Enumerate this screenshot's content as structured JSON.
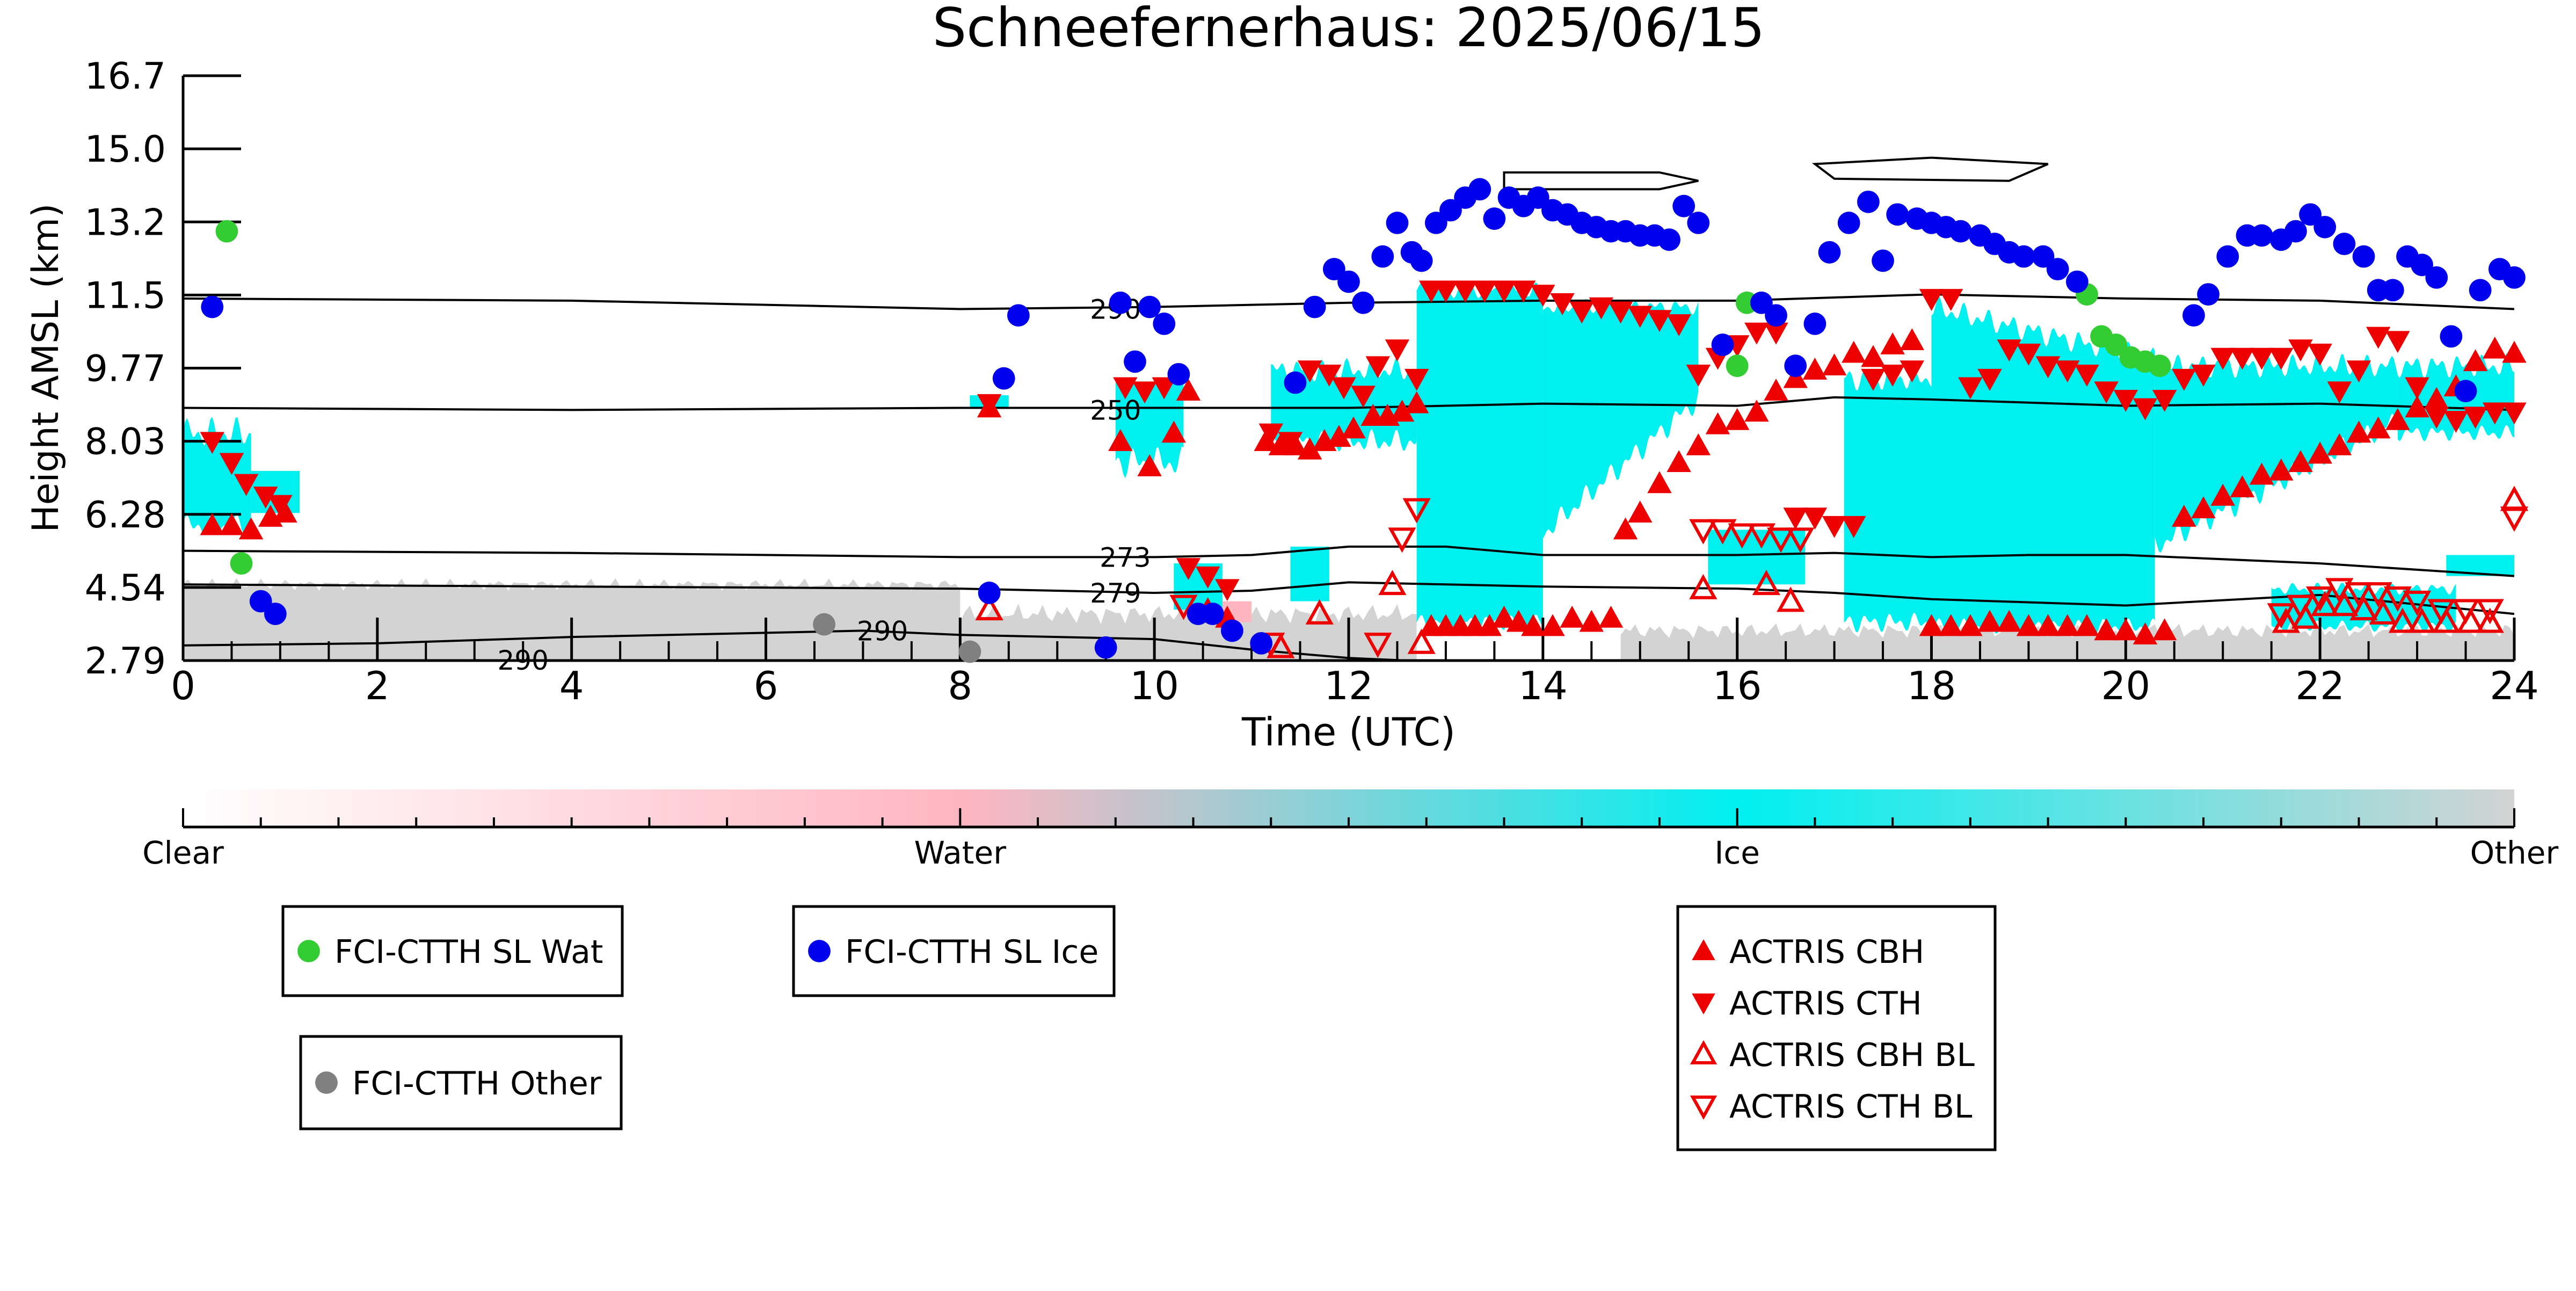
{
  "chart_data": {
    "type": "scatter",
    "title": "Schneefernerhaus: 2025/06/15",
    "xlabel": "Time (UTC)",
    "ylabel": "Height AMSL (km)",
    "xlim": [
      0,
      24
    ],
    "ylim": [
      2.79,
      16.7
    ],
    "x_ticks": [
      "0",
      "2",
      "4",
      "6",
      "8",
      "10",
      "12",
      "14",
      "16",
      "18",
      "20",
      "22",
      "24"
    ],
    "y_ticks": [
      "2.79",
      "4.54",
      "6.28",
      "8.03",
      "9.77",
      "11.5",
      "13.2",
      "15.0",
      "16.7"
    ],
    "grid": false,
    "colorbar": {
      "labels": [
        "Clear",
        "Water",
        "Ice",
        "Other"
      ],
      "colors": [
        "#ffffff",
        "#ffb6c1",
        "#00f0f0",
        "#d3d3d3"
      ]
    },
    "isotherms": [
      {
        "label": "290",
        "points": [
          [
            0,
            11.4
          ],
          [
            4,
            11.35
          ],
          [
            8,
            11.15
          ],
          [
            10,
            11.2
          ],
          [
            12,
            11.3
          ],
          [
            14,
            11.35
          ],
          [
            16,
            11.35
          ],
          [
            18,
            11.5
          ],
          [
            20,
            11.4
          ],
          [
            22,
            11.35
          ],
          [
            24,
            11.15
          ]
        ]
      },
      {
        "label": "250",
        "points": [
          [
            0,
            8.8
          ],
          [
            4,
            8.75
          ],
          [
            8,
            8.8
          ],
          [
            10,
            8.8
          ],
          [
            12,
            8.8
          ],
          [
            14,
            8.9
          ],
          [
            16,
            8.85
          ],
          [
            17,
            9.05
          ],
          [
            18,
            9.0
          ],
          [
            20,
            8.85
          ],
          [
            22,
            8.9
          ],
          [
            24,
            8.75
          ]
        ]
      },
      {
        "label": "273",
        "points": [
          [
            0,
            5.4
          ],
          [
            4,
            5.35
          ],
          [
            8,
            5.25
          ],
          [
            10,
            5.25
          ],
          [
            11,
            5.3
          ],
          [
            12,
            5.5
          ],
          [
            13,
            5.5
          ],
          [
            14,
            5.3
          ],
          [
            16,
            5.3
          ],
          [
            17,
            5.35
          ],
          [
            18,
            5.25
          ],
          [
            19,
            5.3
          ],
          [
            20,
            5.3
          ],
          [
            22,
            5.1
          ],
          [
            24,
            4.8
          ]
        ]
      },
      {
        "label": "279",
        "points": [
          [
            0,
            4.6
          ],
          [
            4,
            4.55
          ],
          [
            8,
            4.5
          ],
          [
            10,
            4.4
          ],
          [
            11,
            4.45
          ],
          [
            12,
            4.65
          ],
          [
            13,
            4.6
          ],
          [
            14,
            4.55
          ],
          [
            16,
            4.5
          ],
          [
            17,
            4.4
          ],
          [
            18,
            4.25
          ],
          [
            20,
            4.1
          ],
          [
            22,
            4.35
          ],
          [
            24,
            3.9
          ]
        ]
      },
      {
        "label": "290",
        "points": [
          [
            0,
            3.15
          ],
          [
            2,
            3.2
          ],
          [
            4,
            3.35
          ],
          [
            6,
            3.45
          ],
          [
            7,
            3.5
          ],
          [
            8,
            3.4
          ],
          [
            9,
            3.35
          ],
          [
            10,
            3.3
          ],
          [
            11,
            3.05
          ],
          [
            12,
            2.85
          ],
          [
            13,
            2.75
          ]
        ]
      },
      {
        "label": "290",
        "points": [
          [
            3,
            2.8
          ],
          [
            4,
            2.75
          ]
        ]
      }
    ],
    "series": [
      {
        "name": "FCI-CTTH SL Wat",
        "color": "#33cc33",
        "marker": "circle",
        "x": [
          0.45,
          0.6,
          16.0,
          16.1,
          19.6,
          19.75,
          19.9,
          20.05,
          20.2,
          20.35
        ],
        "y": [
          13.0,
          5.1,
          9.8,
          11.3,
          11.5,
          10.5,
          10.3,
          10.0,
          9.9,
          9.8
        ]
      },
      {
        "name": "FCI-CTTH SL Ice",
        "color": "#0000ee",
        "marker": "circle",
        "x": [
          0.3,
          0.8,
          0.95,
          8.3,
          8.45,
          8.6,
          9.5,
          9.65,
          9.8,
          9.95,
          10.1,
          10.25,
          10.45,
          10.6,
          10.8,
          11.1,
          11.45,
          11.65,
          11.85,
          12.0,
          12.15,
          12.35,
          12.5,
          12.65,
          12.75,
          12.9,
          13.05,
          13.2,
          13.35,
          13.5,
          13.65,
          13.8,
          13.95,
          14.1,
          14.25,
          14.4,
          14.55,
          14.7,
          14.85,
          15.0,
          15.15,
          15.3,
          15.45,
          15.6,
          15.85,
          16.25,
          16.4,
          16.6,
          16.8,
          16.95,
          17.15,
          17.35,
          17.5,
          17.65,
          17.85,
          18.0,
          18.15,
          18.3,
          18.5,
          18.65,
          18.8,
          18.95,
          19.15,
          19.3,
          19.5,
          20.7,
          20.85,
          21.05,
          21.25,
          21.4,
          21.6,
          21.75,
          21.9,
          22.05,
          22.25,
          22.45,
          22.6,
          22.75,
          22.9,
          23.05,
          23.2,
          23.35,
          23.5,
          23.65,
          23.85,
          24.0
        ],
        "y": [
          11.2,
          4.2,
          3.9,
          4.4,
          9.5,
          11.0,
          3.1,
          11.3,
          9.9,
          11.2,
          10.8,
          9.6,
          3.9,
          3.9,
          3.5,
          3.2,
          9.4,
          11.2,
          12.1,
          11.8,
          11.3,
          12.4,
          13.2,
          12.5,
          12.3,
          13.2,
          13.5,
          13.8,
          14.0,
          13.3,
          13.8,
          13.6,
          13.8,
          13.5,
          13.4,
          13.2,
          13.1,
          13.0,
          13.0,
          12.9,
          12.9,
          12.8,
          13.6,
          13.2,
          10.3,
          11.3,
          11.0,
          9.8,
          10.8,
          12.5,
          13.2,
          13.7,
          12.3,
          13.4,
          13.3,
          13.2,
          13.1,
          13.0,
          12.9,
          12.7,
          12.5,
          12.4,
          12.4,
          12.1,
          11.8,
          11.0,
          11.5,
          12.4,
          12.9,
          12.9,
          12.8,
          13.0,
          13.4,
          13.1,
          12.7,
          12.4,
          11.6,
          11.6,
          12.4,
          12.2,
          11.9,
          10.5,
          9.2,
          11.6,
          12.1,
          11.9
        ]
      },
      {
        "name": "FCI-CTTH Other",
        "color": "#808080",
        "marker": "circle",
        "x": [
          6.6,
          8.1
        ],
        "y": [
          3.65,
          3.0
        ]
      },
      {
        "name": "ACTRIS CBH",
        "color": "#ee0000",
        "marker": "triangle-up",
        "x": [
          0.3,
          0.5,
          0.7,
          0.9,
          1.05,
          8.3,
          9.65,
          9.95,
          10.2,
          10.35,
          10.55,
          10.75,
          11.15,
          11.3,
          11.45,
          11.6,
          11.75,
          11.9,
          12.05,
          12.25,
          12.4,
          12.55,
          12.7,
          12.85,
          13.0,
          13.15,
          13.3,
          13.45,
          13.6,
          13.75,
          13.9,
          14.1,
          14.3,
          14.5,
          14.7,
          14.85,
          15.0,
          15.2,
          15.4,
          15.6,
          15.8,
          16.0,
          16.2,
          16.4,
          16.6,
          16.8,
          17.0,
          17.2,
          17.4,
          17.6,
          17.8,
          18.0,
          18.2,
          18.4,
          18.6,
          18.8,
          19.0,
          19.2,
          19.4,
          19.6,
          19.8,
          20.0,
          20.2,
          20.4,
          20.6,
          20.8,
          21.0,
          21.2,
          21.4,
          21.6,
          21.8,
          22.0,
          22.2,
          22.4,
          22.6,
          22.8,
          23.0,
          23.2,
          23.4,
          23.6,
          23.8,
          24.0
        ],
        "y": [
          6.0,
          6.0,
          5.9,
          6.2,
          6.3,
          8.8,
          8.0,
          7.4,
          8.2,
          9.2,
          4.0,
          3.8,
          8.0,
          7.9,
          7.9,
          7.8,
          8.0,
          8.1,
          8.3,
          8.6,
          8.6,
          8.7,
          8.9,
          3.6,
          3.6,
          3.6,
          3.6,
          3.6,
          3.8,
          3.7,
          3.6,
          3.6,
          3.8,
          3.7,
          3.8,
          5.9,
          6.3,
          7.0,
          7.5,
          7.9,
          8.4,
          8.5,
          8.7,
          9.2,
          9.5,
          9.7,
          9.8,
          10.1,
          10.0,
          10.3,
          10.4,
          3.6,
          3.6,
          3.6,
          3.7,
          3.7,
          3.6,
          3.6,
          3.6,
          3.6,
          3.5,
          3.5,
          3.4,
          3.5,
          6.2,
          6.4,
          6.7,
          6.9,
          7.2,
          7.3,
          7.5,
          7.7,
          7.9,
          8.2,
          8.3,
          8.5,
          8.8,
          9.0,
          9.3,
          9.9,
          10.2,
          10.1
        ]
      },
      {
        "name": "ACTRIS CTH",
        "color": "#ee0000",
        "marker": "triangle-down",
        "x": [
          0.3,
          0.5,
          0.65,
          0.85,
          1.0,
          8.3,
          9.7,
          9.9,
          10.1,
          10.35,
          10.55,
          10.75,
          11.2,
          11.4,
          11.6,
          11.8,
          11.95,
          12.15,
          12.3,
          12.5,
          12.7,
          12.85,
          13.0,
          13.2,
          13.4,
          13.6,
          13.8,
          14.0,
          14.2,
          14.4,
          14.6,
          14.8,
          15.0,
          15.2,
          15.4,
          15.6,
          15.8,
          16.0,
          16.2,
          16.4,
          16.6,
          16.8,
          17.0,
          17.2,
          17.4,
          17.6,
          17.8,
          18.0,
          18.2,
          18.4,
          18.6,
          18.8,
          19.0,
          19.2,
          19.4,
          19.6,
          19.8,
          20.0,
          20.2,
          20.4,
          20.6,
          20.8,
          21.0,
          21.2,
          21.4,
          21.6,
          21.8,
          22.0,
          22.2,
          22.4,
          22.6,
          22.8,
          23.0,
          23.2,
          23.4,
          23.6,
          23.8,
          24.0
        ],
        "y": [
          8.0,
          7.5,
          7.0,
          6.7,
          6.5,
          8.9,
          9.3,
          9.2,
          9.3,
          5.0,
          4.8,
          4.5,
          8.2,
          8.0,
          9.7,
          9.6,
          9.3,
          9.1,
          9.8,
          10.2,
          9.5,
          11.6,
          11.6,
          11.6,
          11.6,
          11.6,
          11.6,
          11.5,
          11.3,
          11.1,
          11.2,
          11.1,
          11.0,
          10.9,
          10.8,
          9.6,
          10.0,
          10.3,
          10.6,
          10.6,
          6.2,
          6.2,
          6.0,
          6.0,
          9.5,
          9.6,
          9.7,
          11.4,
          11.4,
          9.3,
          9.5,
          10.2,
          10.1,
          9.8,
          9.7,
          9.6,
          9.2,
          9.0,
          8.8,
          9.0,
          9.5,
          9.6,
          10.0,
          10.0,
          10.0,
          10.0,
          10.2,
          10.1,
          9.2,
          9.7,
          10.5,
          10.4,
          9.3,
          8.6,
          8.5,
          8.6,
          8.7,
          8.7
        ]
      },
      {
        "name": "ACTRIS CBH BL",
        "color": "#ee0000",
        "marker": "triangle-up-open",
        "x": [
          8.3,
          11.3,
          11.7,
          12.45,
          12.75,
          15.65,
          16.3,
          16.55,
          21.65,
          21.85,
          22.05,
          22.25,
          22.45,
          22.65,
          22.85,
          23.05,
          23.3,
          23.55,
          23.75,
          24.0
        ],
        "y": [
          4.0,
          3.1,
          3.9,
          4.6,
          3.2,
          4.5,
          4.6,
          4.2,
          3.7,
          3.8,
          4.1,
          4.1,
          4.0,
          3.9,
          3.7,
          3.7,
          3.7,
          3.7,
          3.7,
          6.6
        ]
      },
      {
        "name": "ACTRIS CTH BL",
        "color": "#ee0000",
        "marker": "triangle-down-open",
        "x": [
          10.3,
          11.2,
          12.3,
          12.55,
          12.7,
          15.65,
          15.85,
          16.05,
          16.25,
          16.45,
          16.65,
          21.6,
          21.8,
          22.0,
          22.2,
          22.4,
          22.6,
          22.8,
          23.0,
          23.25,
          23.5,
          23.75,
          24.0
        ],
        "y": [
          4.1,
          3.2,
          3.2,
          5.7,
          6.4,
          5.9,
          5.9,
          5.8,
          5.8,
          5.7,
          5.7,
          3.9,
          4.1,
          4.3,
          4.5,
          4.4,
          4.4,
          4.3,
          4.2,
          4.0,
          4.0,
          4.0,
          6.2
        ]
      }
    ],
    "legends": [
      {
        "entries": [
          "FCI-CTTH SL Wat"
        ]
      },
      {
        "entries": [
          "FCI-CTTH SL Ice"
        ]
      },
      {
        "entries": [
          "FCI-CTTH Other"
        ]
      },
      {
        "entries": [
          "ACTRIS CBH",
          "ACTRIS CTH",
          "ACTRIS CBH BL",
          "ACTRIS CTH BL"
        ]
      }
    ]
  }
}
